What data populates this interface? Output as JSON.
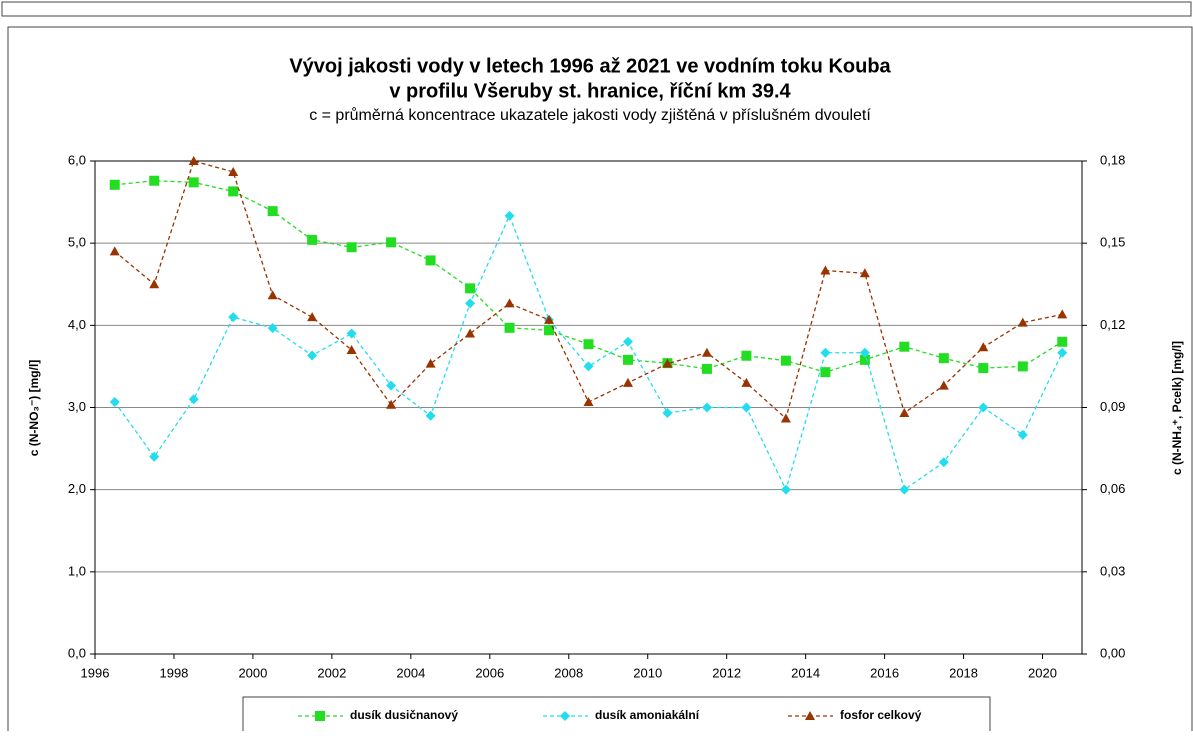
{
  "chart_data": {
    "type": "line",
    "title": [
      "Vývoj jakosti vody v letech 1996 až 2021 ve vodním toku Kouba",
      "v profilu Všeruby st. hranice, říční km 39.4"
    ],
    "subtitle": "c = průměrná koncentrace ukazatele jakosti vody zjištěná v příslušném dvouletí",
    "y_label": "c (N-NO₃⁻) [mg/l]",
    "y2_label": "c (N-NH₄⁺, Pcelk) [mg/l]",
    "x": [
      1996.5,
      1997.5,
      1998.5,
      1999.5,
      2000.5,
      2001.5,
      2002.5,
      2003.5,
      2004.5,
      2005.5,
      2006.5,
      2007.5,
      2008.5,
      2009.5,
      2010.5,
      2011.5,
      2012.5,
      2013.5,
      2014.5,
      2015.5,
      2016.5,
      2017.5,
      2018.5,
      2019.5,
      2020.5
    ],
    "series": [
      {
        "name": "dusík dusičnanový",
        "color": "#22dd22",
        "marker": "square",
        "values": [
          5.71,
          5.76,
          5.74,
          5.63,
          5.39,
          5.04,
          4.95,
          5.01,
          4.79,
          4.45,
          3.97,
          3.94,
          3.77,
          3.58,
          3.54,
          3.47,
          3.63,
          3.57,
          3.43,
          3.58,
          3.74,
          3.6,
          3.48,
          3.5,
          3.8
        ]
      },
      {
        "name": "dusík amoniakální",
        "color": "#22ddee",
        "marker": "diamond",
        "axis": "y2",
        "values": [
          0.092,
          0.072,
          0.093,
          0.123,
          0.119,
          0.109,
          0.117,
          0.098,
          0.087,
          0.128,
          0.16,
          0.122,
          0.105,
          0.114,
          0.088,
          0.09,
          0.09,
          0.06,
          0.11,
          0.11,
          0.06,
          0.07,
          0.09,
          0.08,
          0.11
        ]
      },
      {
        "name": "fosfor celkový",
        "color": "#993300",
        "marker": "triangle",
        "axis": "y2",
        "values": [
          0.147,
          0.135,
          0.18,
          0.176,
          0.131,
          0.123,
          0.111,
          0.091,
          0.106,
          0.117,
          0.128,
          0.122,
          0.092,
          0.099,
          0.106,
          0.11,
          0.099,
          0.086,
          0.14,
          0.139,
          0.088,
          0.098,
          0.112,
          0.121,
          0.124
        ]
      }
    ],
    "xlim": [
      1996,
      2021
    ],
    "xticks": [
      1996,
      1998,
      2000,
      2002,
      2004,
      2006,
      2008,
      2010,
      2012,
      2014,
      2016,
      2018,
      2020
    ],
    "ylim": [
      0,
      6
    ],
    "yticks": [
      {
        "value": 0,
        "label": "0,0"
      },
      {
        "value": 1,
        "label": "1,0"
      },
      {
        "value": 2,
        "label": "2,0"
      },
      {
        "value": 3,
        "label": "3,0"
      },
      {
        "value": 4,
        "label": "4,0"
      },
      {
        "value": 5,
        "label": "5,0"
      },
      {
        "value": 6,
        "label": "6,0"
      }
    ],
    "y2lim": [
      0,
      0.18
    ],
    "y2ticks": [
      {
        "value": 0,
        "label": "0,00"
      },
      {
        "value": 0.03,
        "label": "0,03"
      },
      {
        "value": 0.06,
        "label": "0,06"
      },
      {
        "value": 0.09,
        "label": "0,09"
      },
      {
        "value": 0.12,
        "label": "0,12"
      },
      {
        "value": 0.15,
        "label": "0,15"
      },
      {
        "value": 0.18,
        "label": "0,18"
      }
    ],
    "grid": true,
    "dashed": true,
    "legend": "bottom"
  }
}
